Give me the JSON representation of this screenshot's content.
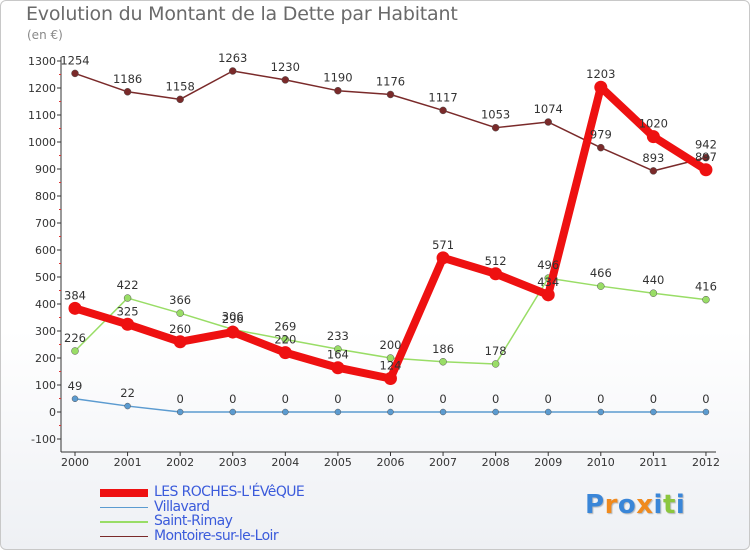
{
  "header": {
    "title": "Evolution du Montant de la Dette par Habitant",
    "unit": "(en €)"
  },
  "chart_data": {
    "type": "line",
    "title": "Evolution du Montant de la Dette par Habitant",
    "ylabel": "(en €)",
    "xlabel": "",
    "x": [
      2000,
      2001,
      2002,
      2003,
      2004,
      2005,
      2006,
      2007,
      2008,
      2009,
      2010,
      2011,
      2012
    ],
    "ylim": [
      -100,
      1300
    ],
    "yticks": [
      -100,
      0,
      100,
      200,
      300,
      400,
      500,
      600,
      700,
      800,
      900,
      1000,
      1100,
      1200,
      1300
    ],
    "grid": false,
    "legend_position": "bottom-left",
    "series": [
      {
        "name": "LES ROCHES-L'ÉVêQUE",
        "color": "#ee1111",
        "values": [
          384,
          325,
          260,
          296,
          220,
          164,
          124,
          571,
          512,
          434,
          1203,
          1020,
          897
        ],
        "labels": [
          "384",
          "325",
          "260",
          "296",
          "220",
          "164",
          "124",
          "571",
          "512",
          "434",
          "1203",
          "1020",
          "897"
        ]
      },
      {
        "name": "Villavard",
        "color": "#5b9bd0",
        "values": [
          49,
          22,
          0,
          0,
          0,
          0,
          0,
          0,
          0,
          0,
          0,
          0,
          0
        ],
        "labels": [
          "49",
          "22",
          "0",
          "0",
          "0",
          "0",
          "0",
          "0",
          "0",
          "0",
          "0",
          "0",
          "0"
        ]
      },
      {
        "name": "Saint-Rimay",
        "color": "#99dd66",
        "values": [
          226,
          422,
          366,
          306,
          269,
          233,
          200,
          186,
          178,
          496,
          466,
          440,
          416
        ],
        "labels": [
          "226",
          "422",
          "366",
          "306",
          "269",
          "233",
          "200",
          "186",
          "178",
          "496",
          "466",
          "440",
          "416"
        ]
      },
      {
        "name": "Montoire-sur-le-Loir",
        "color": "#7a2a2a",
        "values": [
          1254,
          1186,
          1158,
          1263,
          1230,
          1190,
          1176,
          1117,
          1053,
          1074,
          979,
          893,
          942
        ],
        "labels": [
          "1254",
          "1186",
          "1158",
          "1263",
          "1230",
          "1190",
          "1176",
          "1117",
          "1053",
          "1074",
          "979",
          "893",
          "942"
        ]
      }
    ]
  },
  "logo": {
    "letters": [
      "P",
      "r",
      "o",
      "x",
      "i",
      "t",
      "i"
    ]
  },
  "colors": {
    "axis": "#333333",
    "tick_label": "#333333",
    "value_label": "#333333",
    "legend_text": "#3b5bdb",
    "logo": [
      "#3a86d8",
      "#f08a1e",
      "#3a86d8",
      "#f08a1e",
      "#3a86d8",
      "#8cc63f",
      "#3a86d8"
    ]
  }
}
